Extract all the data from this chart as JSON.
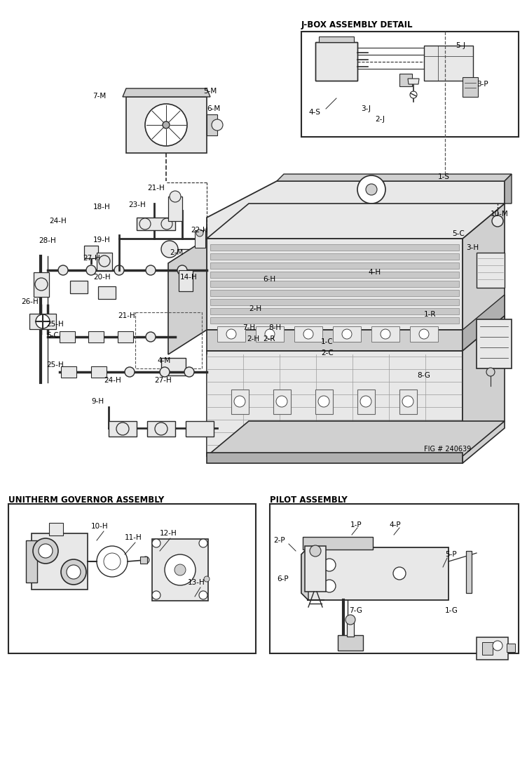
{
  "background_color": "#ffffff",
  "fig_width": 7.52,
  "fig_height": 11.0,
  "dpi": 100,
  "jbox_title": "J-BOX ASSEMBLY DETAIL",
  "unitherm_title": "UNITHERM GOVERNOR ASSEMBLY",
  "pilot_title": "PILOT ASSEMBLY",
  "fig_note": "FIG # 240639"
}
